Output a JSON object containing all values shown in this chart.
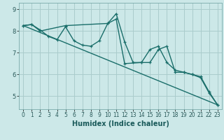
{
  "xlabel": "Humidex (Indice chaleur)",
  "bg_color": "#cce8e8",
  "grid_color": "#aacccc",
  "line_color": "#1a6e6a",
  "xlim": [
    -0.5,
    23.5
  ],
  "ylim": [
    4.4,
    9.3
  ],
  "yticks": [
    5,
    6,
    7,
    8,
    9
  ],
  "xticks": [
    0,
    1,
    2,
    3,
    4,
    5,
    6,
    7,
    8,
    9,
    10,
    11,
    12,
    13,
    14,
    15,
    16,
    17,
    18,
    19,
    20,
    21,
    22,
    23
  ],
  "series1_x": [
    0,
    1,
    2,
    3,
    4,
    5,
    6,
    7,
    8,
    9,
    10,
    11,
    12,
    13,
    14,
    15,
    16,
    17,
    18,
    19,
    20,
    21,
    22,
    23
  ],
  "series1_y": [
    8.25,
    8.3,
    8.05,
    7.75,
    7.6,
    8.2,
    7.55,
    7.35,
    7.3,
    7.55,
    8.35,
    8.8,
    7.5,
    6.55,
    6.55,
    7.15,
    7.3,
    6.55,
    6.2,
    6.1,
    6.0,
    5.9,
    5.2,
    4.6
  ],
  "series2_x": [
    0,
    1,
    2,
    5,
    10,
    11,
    12,
    14,
    15,
    16,
    17,
    18,
    19,
    20,
    21,
    22,
    23
  ],
  "series2_y": [
    8.25,
    8.3,
    8.0,
    8.25,
    8.35,
    8.55,
    6.5,
    6.55,
    6.55,
    7.15,
    7.3,
    6.1,
    6.1,
    6.0,
    5.85,
    5.15,
    4.6
  ],
  "series3_x": [
    0,
    23
  ],
  "series3_y": [
    8.25,
    4.6
  ],
  "marker_size": 3.5,
  "line_width": 1.0
}
